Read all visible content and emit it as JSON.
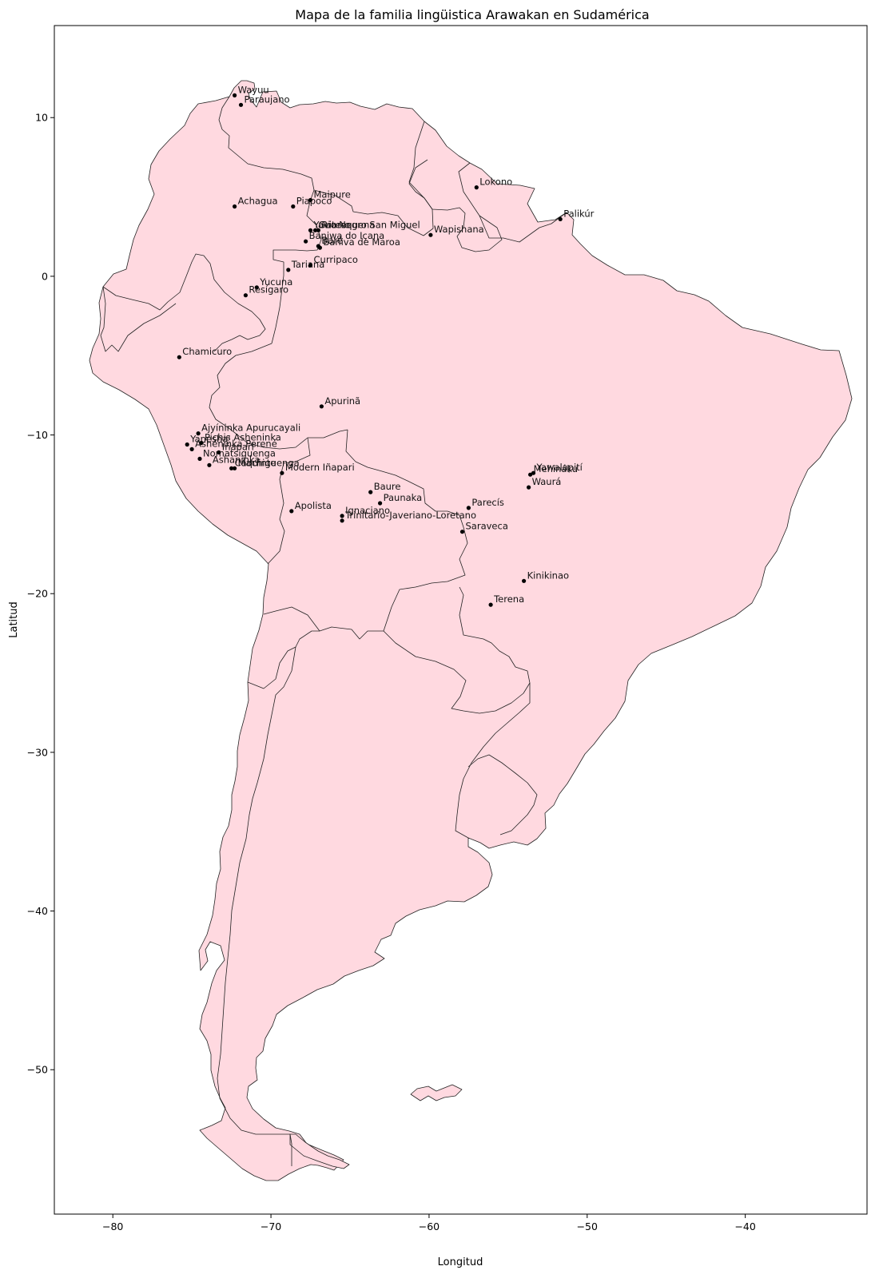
{
  "chart_data": {
    "type": "scatter",
    "title": "Mapa de la familia lingüistica Arawakan en Sudamérica",
    "xlabel": "Longitud",
    "ylabel": "Latitud",
    "xlim": [
      -83.7,
      -32.3
    ],
    "ylim": [
      -59.1,
      15.8
    ],
    "xticks": [
      -80,
      -70,
      -60,
      -50,
      -40
    ],
    "yticks": [
      10,
      0,
      -10,
      -20,
      -30,
      -40,
      -50
    ],
    "fill_color": "#ffd9e0",
    "marker_color": "#000000",
    "points": [
      {
        "name": "Wayuu",
        "lon": -72.3,
        "lat": 11.4
      },
      {
        "name": "Paraujano",
        "lon": -71.9,
        "lat": 10.8
      },
      {
        "name": "Lokono",
        "lon": -57.0,
        "lat": 5.6
      },
      {
        "name": "Palikúr",
        "lon": -51.7,
        "lat": 3.6
      },
      {
        "name": "Achagua",
        "lon": -72.3,
        "lat": 4.4
      },
      {
        "name": "Piapoco",
        "lon": -68.6,
        "lat": 4.4
      },
      {
        "name": "Maipure",
        "lon": -67.5,
        "lat": 4.8
      },
      {
        "name": "Yavitero",
        "lon": -67.5,
        "lat": 2.9
      },
      {
        "name": "Guarequena",
        "lon": -67.2,
        "lat": 2.9
      },
      {
        "name": "Rio Negro San Miguel",
        "lon": -67.0,
        "lat": 2.9
      },
      {
        "name": "Wapishana",
        "lon": -59.9,
        "lat": 2.6
      },
      {
        "name": "Baniwa do Içana",
        "lon": -67.8,
        "lat": 2.2
      },
      {
        "name": "Baré",
        "lon": -67.0,
        "lat": 1.9
      },
      {
        "name": "Baniva de Maroa",
        "lon": -66.9,
        "lat": 1.8
      },
      {
        "name": "Curripaco",
        "lon": -67.5,
        "lat": 0.7
      },
      {
        "name": "Tariana",
        "lon": -68.9,
        "lat": 0.4
      },
      {
        "name": "Yucuna",
        "lon": -70.9,
        "lat": -0.7
      },
      {
        "name": "Resígaro",
        "lon": -71.6,
        "lat": -1.2
      },
      {
        "name": "Chamicuro",
        "lon": -75.8,
        "lat": -5.1
      },
      {
        "name": "Apurinã",
        "lon": -66.8,
        "lat": -8.2
      },
      {
        "name": "Ajyíninka Apurucayali",
        "lon": -74.6,
        "lat": -9.9
      },
      {
        "name": "Pichis Asheninka",
        "lon": -74.4,
        "lat": -10.5
      },
      {
        "name": "Yanesha'",
        "lon": -75.3,
        "lat": -10.6
      },
      {
        "name": "Ashéninka Perené",
        "lon": -75.0,
        "lat": -10.9
      },
      {
        "name": "Iñapari",
        "lon": -73.3,
        "lat": -11.1
      },
      {
        "name": "Nomatsiguenga",
        "lon": -74.5,
        "lat": -11.5
      },
      {
        "name": "Ashaninka",
        "lon": -73.9,
        "lat": -11.9
      },
      {
        "name": "Caquinte",
        "lon": -72.5,
        "lat": -12.1
      },
      {
        "name": "Machiguenga",
        "lon": -72.3,
        "lat": -12.1
      },
      {
        "name": "Modern Iñapari",
        "lon": -69.3,
        "lat": -12.4
      },
      {
        "name": "Mehináku",
        "lon": -53.6,
        "lat": -12.5
      },
      {
        "name": "Yawalapití",
        "lon": -53.4,
        "lat": -12.4
      },
      {
        "name": "Waurá",
        "lon": -53.7,
        "lat": -13.3
      },
      {
        "name": "Baure",
        "lon": -63.7,
        "lat": -13.6
      },
      {
        "name": "Paunaka",
        "lon": -63.1,
        "lat": -14.3
      },
      {
        "name": "Parecís",
        "lon": -57.5,
        "lat": -14.6
      },
      {
        "name": "Apolista",
        "lon": -68.7,
        "lat": -14.8
      },
      {
        "name": "Ignaciano",
        "lon": -65.5,
        "lat": -15.1
      },
      {
        "name": "Trinitario-Javeriano-Loretano",
        "lon": -65.5,
        "lat": -15.4
      },
      {
        "name": "Saraveca",
        "lon": -57.9,
        "lat": -16.1
      },
      {
        "name": "Kinikinao",
        "lon": -54.0,
        "lat": -19.2
      },
      {
        "name": "Terena",
        "lon": -56.1,
        "lat": -20.7
      }
    ]
  }
}
